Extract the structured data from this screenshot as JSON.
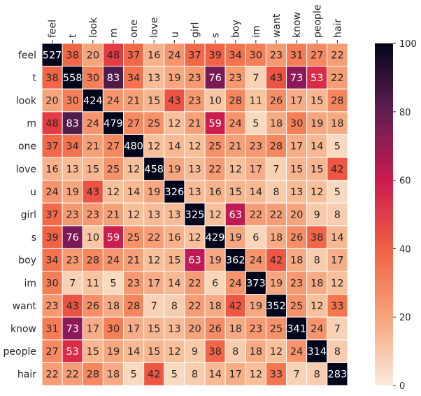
{
  "chart_data": {
    "type": "heatmap",
    "title": "",
    "xlabel": "",
    "ylabel": "",
    "x_tick_position": "top",
    "colormap": "rocket_r",
    "x_labels": [
      "feel",
      "t",
      "look",
      "m",
      "one",
      "love",
      "u",
      "girl",
      "s",
      "boy",
      "im",
      "want",
      "know",
      "people",
      "hair"
    ],
    "y_labels": [
      "feel",
      "t",
      "look",
      "m",
      "one",
      "love",
      "u",
      "girl",
      "s",
      "boy",
      "im",
      "want",
      "know",
      "people",
      "hair"
    ],
    "values": [
      [
        527,
        38,
        20,
        48,
        37,
        16,
        24,
        37,
        39,
        34,
        30,
        23,
        31,
        27,
        22
      ],
      [
        38,
        558,
        30,
        83,
        34,
        13,
        19,
        23,
        76,
        23,
        7,
        43,
        73,
        53,
        22
      ],
      [
        20,
        30,
        424,
        24,
        21,
        15,
        43,
        23,
        10,
        28,
        11,
        26,
        17,
        15,
        28
      ],
      [
        48,
        83,
        24,
        479,
        27,
        25,
        12,
        21,
        59,
        24,
        5,
        18,
        30,
        19,
        18
      ],
      [
        37,
        34,
        21,
        27,
        480,
        12,
        14,
        12,
        25,
        21,
        23,
        28,
        17,
        14,
        5
      ],
      [
        16,
        13,
        15,
        25,
        12,
        458,
        19,
        13,
        22,
        12,
        17,
        7,
        15,
        15,
        42
      ],
      [
        24,
        19,
        43,
        12,
        14,
        19,
        326,
        13,
        16,
        15,
        14,
        8,
        13,
        12,
        5
      ],
      [
        37,
        23,
        23,
        21,
        12,
        13,
        13,
        325,
        12,
        63,
        22,
        22,
        20,
        9,
        8
      ],
      [
        39,
        76,
        10,
        59,
        25,
        22,
        16,
        12,
        429,
        19,
        6,
        18,
        26,
        38,
        14
      ],
      [
        34,
        23,
        28,
        24,
        21,
        12,
        15,
        63,
        19,
        362,
        24,
        42,
        18,
        8,
        17
      ],
      [
        30,
        7,
        11,
        5,
        23,
        17,
        14,
        22,
        6,
        24,
        373,
        19,
        23,
        18,
        12
      ],
      [
        23,
        43,
        26,
        18,
        28,
        7,
        8,
        22,
        18,
        42,
        19,
        352,
        25,
        12,
        33
      ],
      [
        31,
        73,
        17,
        30,
        17,
        15,
        13,
        20,
        26,
        18,
        23,
        25,
        341,
        24,
        7
      ],
      [
        27,
        53,
        15,
        19,
        14,
        15,
        12,
        9,
        38,
        8,
        18,
        12,
        24,
        314,
        8
      ],
      [
        22,
        22,
        28,
        18,
        5,
        42,
        5,
        8,
        14,
        17,
        12,
        33,
        7,
        8,
        283
      ]
    ],
    "color_range": [
      0,
      100
    ],
    "colorbar_ticks": [
      0,
      20,
      40,
      60,
      80,
      100
    ],
    "colorbar_tick_labels": [
      "0",
      "20",
      "40",
      "60",
      "80",
      "100"
    ]
  }
}
